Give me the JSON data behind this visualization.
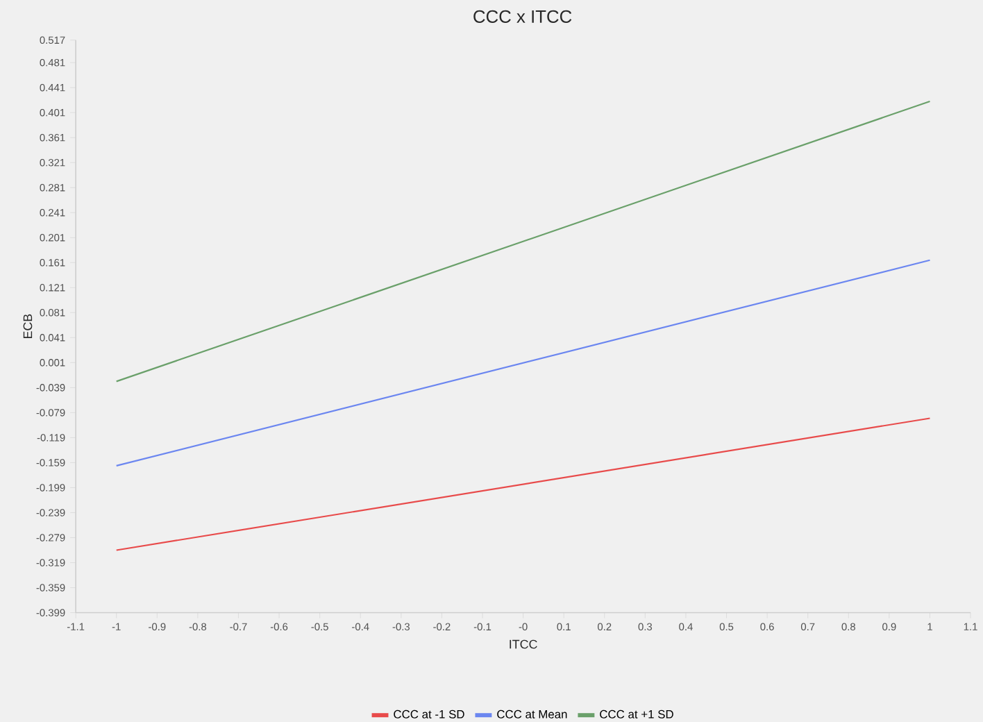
{
  "chart_data": {
    "type": "line",
    "title": "CCC x ITCC",
    "xlabel": "ITCC",
    "ylabel": "ECB",
    "x": [
      -1,
      1
    ],
    "series": [
      {
        "name": "CCC at -1 SD",
        "color": "#e84a4a",
        "values": [
          -0.299,
          -0.088
        ]
      },
      {
        "name": "CCC at Mean",
        "color": "#6b86f0",
        "values": [
          -0.164,
          0.165
        ]
      },
      {
        "name": "CCC at +1 SD",
        "color": "#6aa06a",
        "values": [
          -0.029,
          0.419
        ]
      }
    ],
    "xlim": [
      -1.1,
      1.1
    ],
    "xticks": [
      -1.1,
      -1,
      -0.9,
      -0.8,
      -0.7,
      -0.6,
      -0.5,
      -0.4,
      -0.3,
      -0.2,
      -0.1,
      {
        "value": 0,
        "label": "-0"
      },
      0.1,
      0.2,
      0.3,
      0.4,
      0.5,
      0.6,
      0.7,
      0.8,
      0.9,
      1,
      1.1
    ],
    "ylim": [
      -0.399,
      0.517
    ],
    "yticks": [
      -0.399,
      -0.359,
      -0.319,
      -0.279,
      -0.239,
      -0.199,
      -0.159,
      -0.119,
      -0.079,
      -0.039,
      0.001,
      0.041,
      0.081,
      0.121,
      0.161,
      0.201,
      0.241,
      0.281,
      0.321,
      0.361,
      0.401,
      0.441,
      0.481,
      0.517
    ],
    "legend": "bottom",
    "line_style": "solid",
    "marker": "none"
  }
}
